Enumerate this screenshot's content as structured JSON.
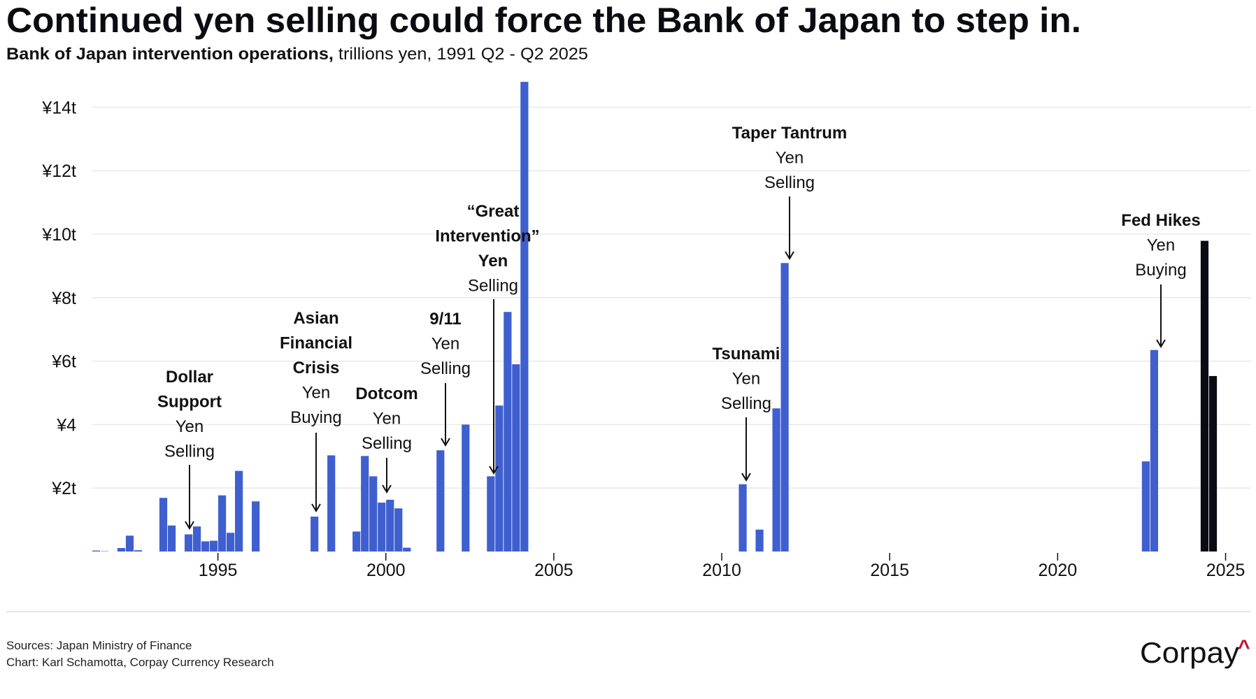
{
  "header": {
    "title": "Continued yen selling could force the Bank of Japan to step in.",
    "subtitle_bold": "Bank of Japan intervention operations,",
    "subtitle_rest": " trillions yen, 1991 Q2 - Q2 2025"
  },
  "chart_data": {
    "type": "bar",
    "title": "Continued yen selling could force the Bank of Japan to step in.",
    "subtitle": "Bank of Japan intervention operations, trillions yen, 1991 Q2 - Q2 2025",
    "xlabel": "",
    "ylabel": "trillions yen",
    "ylim": [
      0,
      14.8
    ],
    "xlim": [
      1991,
      2025.5
    ],
    "grid": true,
    "y_ticks": [
      {
        "value": 2,
        "label": "¥2t"
      },
      {
        "value": 4,
        "label": "¥4"
      },
      {
        "value": 6,
        "label": "¥6t"
      },
      {
        "value": 8,
        "label": "¥8t"
      },
      {
        "value": 10,
        "label": "¥10t"
      },
      {
        "value": 12,
        "label": "¥12t"
      },
      {
        "value": 14,
        "label": "¥14t"
      }
    ],
    "x_ticks": [
      {
        "value": 1995,
        "label": "1995"
      },
      {
        "value": 2000,
        "label": "2000"
      },
      {
        "value": 2005,
        "label": "2005"
      },
      {
        "value": 2010,
        "label": "2010"
      },
      {
        "value": 2015,
        "label": "2015"
      },
      {
        "value": 2020,
        "label": "2020"
      },
      {
        "value": 2025,
        "label": "2025"
      }
    ],
    "colors": {
      "historical": "#3f5fcf",
      "recent": "#0a0a14"
    },
    "series": [
      {
        "name": "historical",
        "color": "#3f5fcf",
        "points": [
          {
            "period": "1991 Q2",
            "year": 1991,
            "q": 2,
            "value": 0.03
          },
          {
            "period": "1991 Q3",
            "year": 1991,
            "q": 3,
            "value": 0.01
          },
          {
            "period": "1992 Q1",
            "year": 1992,
            "q": 1,
            "value": 0.11
          },
          {
            "period": "1992 Q2",
            "year": 1992,
            "q": 2,
            "value": 0.5
          },
          {
            "period": "1992 Q3",
            "year": 1992,
            "q": 3,
            "value": 0.04
          },
          {
            "period": "1993 Q2",
            "year": 1993,
            "q": 2,
            "value": 1.69
          },
          {
            "period": "1993 Q3",
            "year": 1993,
            "q": 3,
            "value": 0.82
          },
          {
            "period": "1994 Q1",
            "year": 1994,
            "q": 1,
            "value": 0.54
          },
          {
            "period": "1994 Q2",
            "year": 1994,
            "q": 2,
            "value": 0.79
          },
          {
            "period": "1994 Q3",
            "year": 1994,
            "q": 3,
            "value": 0.32
          },
          {
            "period": "1994 Q4",
            "year": 1994,
            "q": 4,
            "value": 0.34
          },
          {
            "period": "1995 Q1",
            "year": 1995,
            "q": 1,
            "value": 1.77
          },
          {
            "period": "1995 Q2",
            "year": 1995,
            "q": 2,
            "value": 0.59
          },
          {
            "period": "1995 Q3",
            "year": 1995,
            "q": 3,
            "value": 2.54
          },
          {
            "period": "1996 Q1",
            "year": 1996,
            "q": 1,
            "value": 1.58
          },
          {
            "period": "1997 Q4",
            "year": 1997,
            "q": 4,
            "value": 1.1
          },
          {
            "period": "1998 Q2",
            "year": 1998,
            "q": 2,
            "value": 3.03
          },
          {
            "period": "1999 Q1",
            "year": 1999,
            "q": 1,
            "value": 0.63
          },
          {
            "period": "1999 Q2",
            "year": 1999,
            "q": 2,
            "value": 3.01
          },
          {
            "period": "1999 Q3",
            "year": 1999,
            "q": 3,
            "value": 2.37
          },
          {
            "period": "1999 Q4",
            "year": 1999,
            "q": 4,
            "value": 1.54
          },
          {
            "period": "2000 Q1",
            "year": 2000,
            "q": 1,
            "value": 1.63
          },
          {
            "period": "2000 Q2",
            "year": 2000,
            "q": 2,
            "value": 1.36
          },
          {
            "period": "2000 Q3",
            "year": 2000,
            "q": 3,
            "value": 0.12
          },
          {
            "period": "2001 Q3",
            "year": 2001,
            "q": 3,
            "value": 3.19
          },
          {
            "period": "2002 Q2",
            "year": 2002,
            "q": 2,
            "value": 4.0
          },
          {
            "period": "2003 Q1",
            "year": 2003,
            "q": 1,
            "value": 2.37
          },
          {
            "period": "2003 Q2",
            "year": 2003,
            "q": 2,
            "value": 4.6
          },
          {
            "period": "2003 Q3",
            "year": 2003,
            "q": 3,
            "value": 7.55
          },
          {
            "period": "2003 Q4",
            "year": 2003,
            "q": 4,
            "value": 5.9
          },
          {
            "period": "2004 Q1",
            "year": 2004,
            "q": 1,
            "value": 14.8
          },
          {
            "period": "2010 Q3",
            "year": 2010,
            "q": 3,
            "value": 2.12
          },
          {
            "period": "2011 Q1",
            "year": 2011,
            "q": 1,
            "value": 0.69
          },
          {
            "period": "2011 Q3",
            "year": 2011,
            "q": 3,
            "value": 4.51
          },
          {
            "period": "2011 Q4",
            "year": 2011,
            "q": 4,
            "value": 9.09
          },
          {
            "period": "2022 Q3",
            "year": 2022,
            "q": 3,
            "value": 2.84
          },
          {
            "period": "2022 Q4",
            "year": 2022,
            "q": 4,
            "value": 6.35
          }
        ]
      },
      {
        "name": "recent",
        "color": "#0a0a14",
        "points": [
          {
            "period": "2024 Q2",
            "year": 2024,
            "q": 2,
            "value": 9.79
          },
          {
            "period": "2024 Q3",
            "year": 2024,
            "q": 3,
            "value": 5.53
          }
        ]
      }
    ],
    "annotations": {
      "dollar_support": {
        "bold": [
          "Dollar",
          "Support"
        ],
        "text": [
          "Yen",
          "Selling"
        ]
      },
      "asian_crisis": {
        "bold": [
          "Asian",
          "Financial",
          "Crisis"
        ],
        "text": [
          "Yen",
          "Buying"
        ]
      },
      "dotcom": {
        "bold": [
          "Dotcom"
        ],
        "text": [
          "Yen",
          "Selling"
        ]
      },
      "nine_eleven": {
        "bold": [
          "9/11"
        ],
        "text": [
          "Yen",
          "Selling"
        ]
      },
      "great_intervention": {
        "bold": [
          "“Great",
          "Intervention”",
          "Yen"
        ],
        "text": [
          "Selling"
        ]
      },
      "taper_tantrum": {
        "bold": [
          "Taper Tantrum"
        ],
        "text": [
          "Yen",
          "Selling"
        ]
      },
      "tsunami": {
        "bold": [
          "Tsunami"
        ],
        "text": [
          "Yen",
          "Selling"
        ]
      },
      "fed_hikes": {
        "bold": [
          "Fed Hikes"
        ],
        "text": [
          "Yen",
          "Buying"
        ]
      }
    }
  },
  "footer": {
    "sources": "Sources: Japan Ministry of Finance",
    "credit": "Chart: Karl Schamotta, Corpay Currency Research",
    "logo_text": "Corpay",
    "logo_accent": "^",
    "logo_accent_color": "#c8102e"
  }
}
